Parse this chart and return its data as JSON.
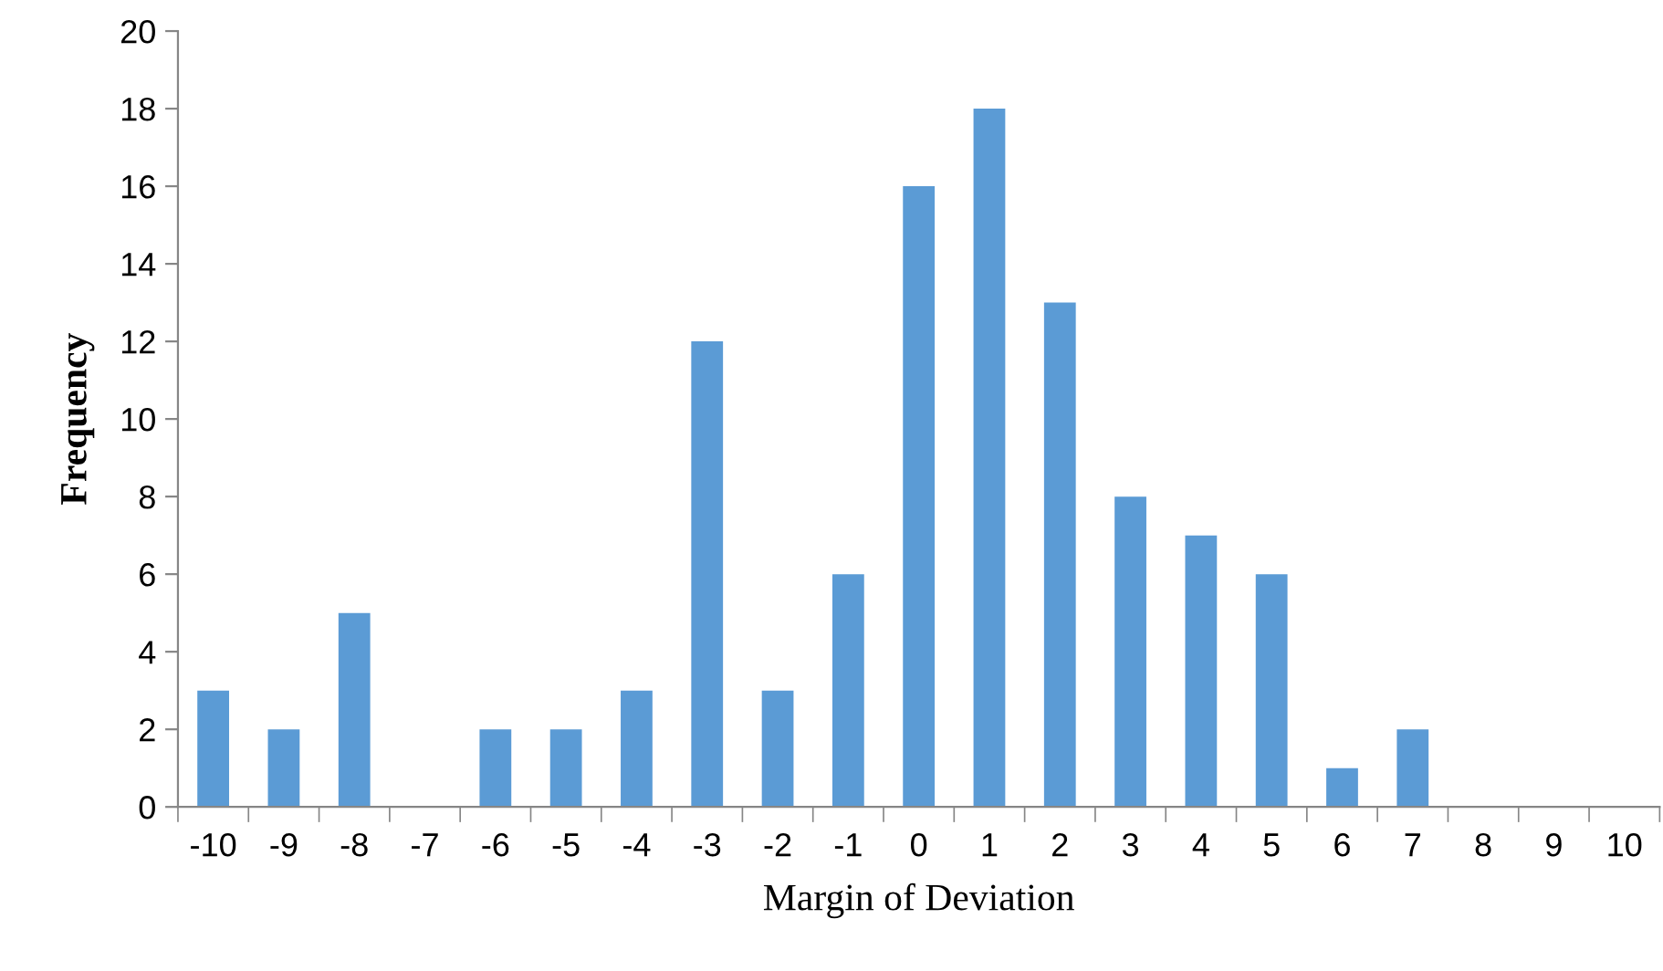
{
  "chart_data": {
    "type": "bar",
    "xlabel": "Margin of Deviation",
    "ylabel": "Frequency",
    "categories": [
      "-10",
      "-9",
      "-8",
      "-7",
      "-6",
      "-5",
      "-4",
      "-3",
      "-2",
      "-1",
      "0",
      "1",
      "2",
      "3",
      "4",
      "5",
      "6",
      "7",
      "8",
      "9",
      "10"
    ],
    "values": [
      3,
      2,
      5,
      0,
      2,
      2,
      3,
      12,
      3,
      6,
      16,
      18,
      13,
      8,
      7,
      6,
      1,
      2,
      0,
      0,
      0
    ],
    "color": "#5b9bd5",
    "ylim": [
      0,
      20
    ],
    "yticks": [
      0,
      2,
      4,
      6,
      8,
      10,
      12,
      14,
      16,
      18,
      20
    ],
    "grid": false,
    "legend": false
  }
}
